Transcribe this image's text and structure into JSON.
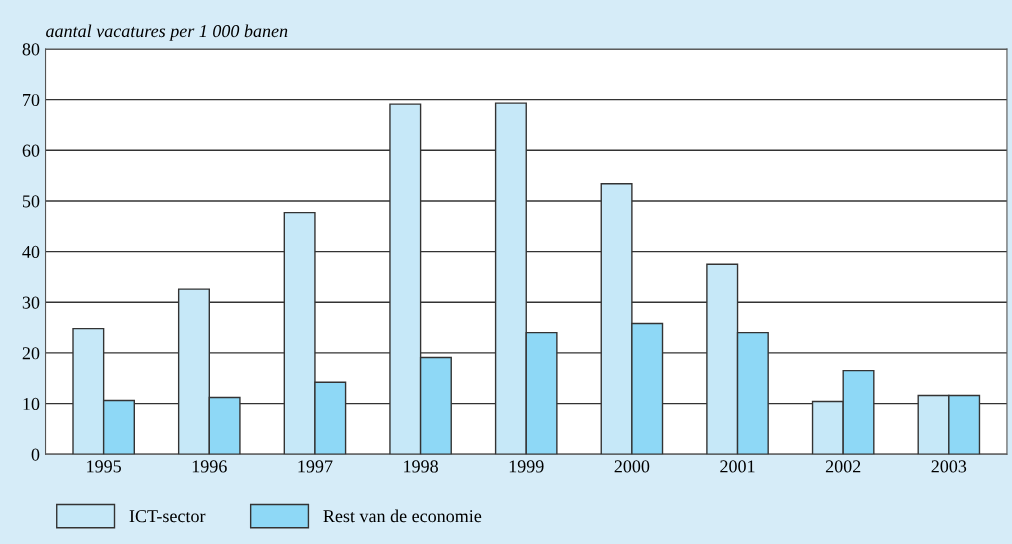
{
  "chart_data": {
    "type": "bar",
    "ylabel": "aantal vacatures per 1 000 banen",
    "categories": [
      "1995",
      "1996",
      "1997",
      "1998",
      "1999",
      "2000",
      "2001",
      "2002",
      "2003"
    ],
    "series": [
      {
        "name": "ICT-sector",
        "color": "#c6e8f8",
        "values": [
          24.8,
          32.6,
          47.7,
          69.1,
          69.3,
          53.4,
          37.5,
          10.4,
          11.6
        ]
      },
      {
        "name": "Rest van de economie",
        "color": "#8ed8f6",
        "values": [
          10.6,
          11.2,
          14.2,
          19.1,
          24.0,
          25.8,
          24.0,
          16.5,
          11.6
        ]
      }
    ],
    "ylim": [
      0,
      80
    ],
    "yticks": [
      0,
      10,
      20,
      30,
      40,
      50,
      60,
      70,
      80
    ],
    "grid": "y",
    "legend": "bottom left"
  }
}
